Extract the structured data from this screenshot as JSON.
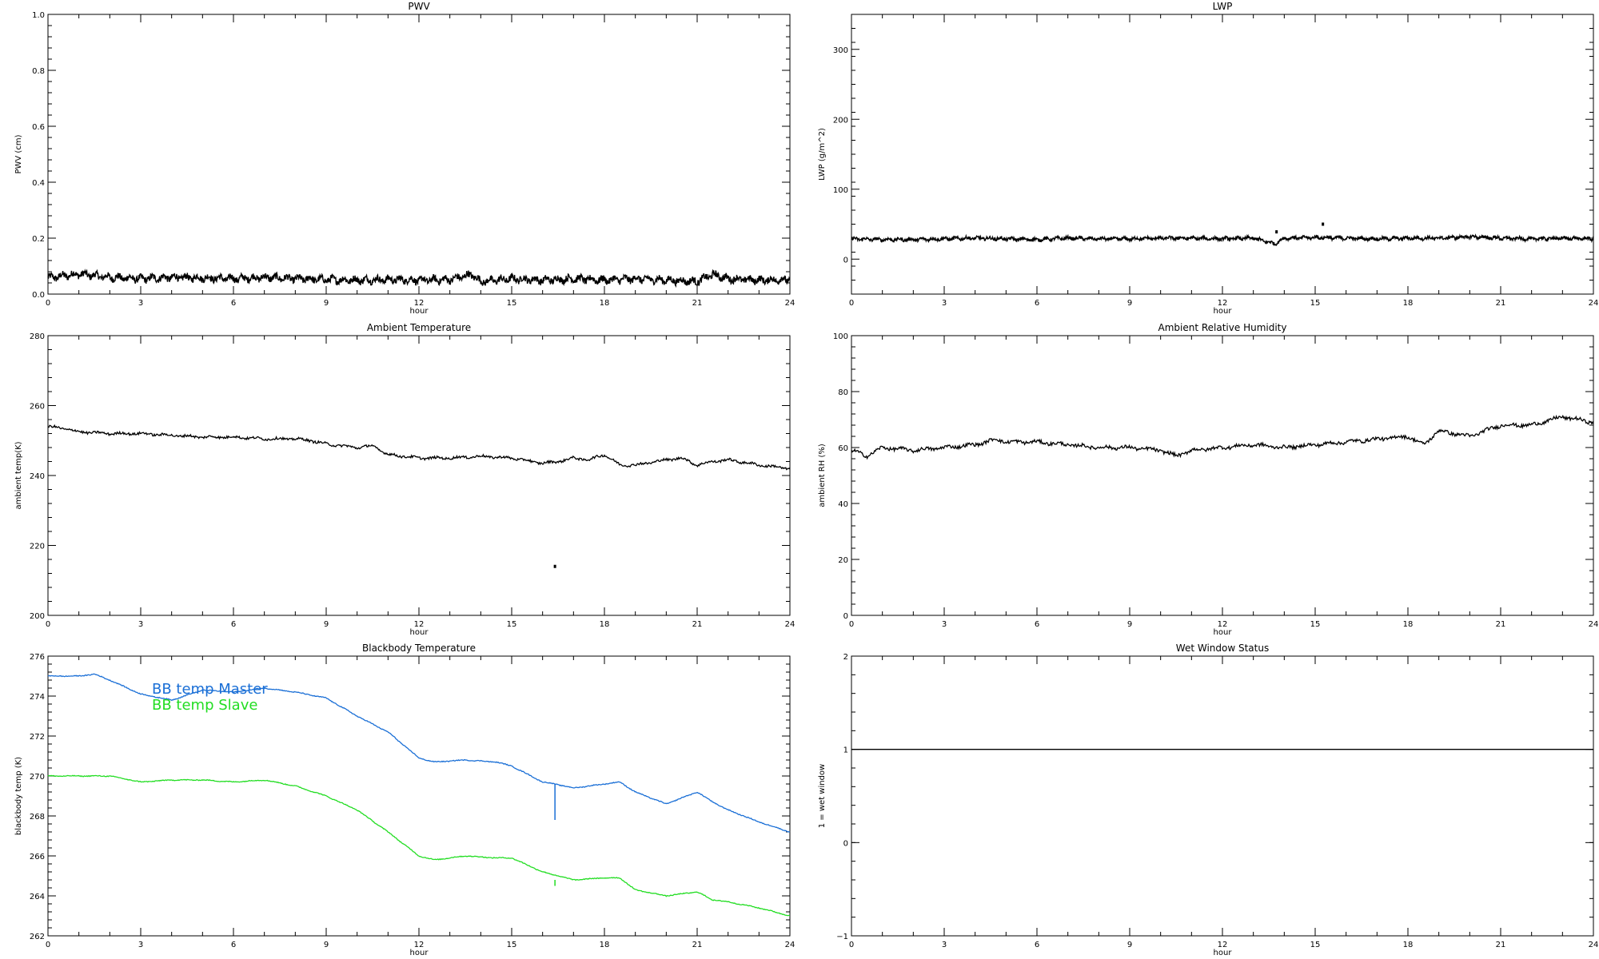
{
  "chart_data": [
    {
      "id": "pwv",
      "type": "line",
      "title": "PWV",
      "xlabel": "hour",
      "ylabel": "PWV (cm)",
      "xlim": [
        0,
        24
      ],
      "ylim": [
        0,
        1.0
      ],
      "xticks": [
        "0",
        "3",
        "6",
        "9",
        "12",
        "15",
        "18",
        "21",
        "24"
      ],
      "yticks": [
        "0.0",
        "0.2",
        "0.4",
        "0.6",
        "0.8",
        "1.0"
      ],
      "series": [
        {
          "color": "#000000",
          "style": "noisy",
          "noise": 0.012,
          "x": [
            0,
            1,
            2,
            3,
            4,
            5,
            6,
            7,
            8,
            9,
            10,
            11,
            12,
            13,
            13.7,
            14,
            15,
            16,
            17,
            18,
            19,
            20,
            21,
            21.5,
            22,
            23,
            24
          ],
          "y": [
            0.058,
            0.072,
            0.06,
            0.055,
            0.06,
            0.058,
            0.055,
            0.06,
            0.055,
            0.052,
            0.05,
            0.052,
            0.05,
            0.052,
            0.07,
            0.045,
            0.055,
            0.05,
            0.055,
            0.05,
            0.055,
            0.05,
            0.045,
            0.07,
            0.055,
            0.05,
            0.052
          ]
        }
      ]
    },
    {
      "id": "lwp",
      "type": "line",
      "title": "LWP",
      "xlabel": "hour",
      "ylabel": "LWP (g/m^2)",
      "xlim": [
        0,
        24
      ],
      "ylim": [
        -50,
        350
      ],
      "xticks": [
        "0",
        "3",
        "6",
        "9",
        "12",
        "15",
        "18",
        "21",
        "24"
      ],
      "yticks": [
        "0",
        "100",
        "200",
        "300"
      ],
      "series": [
        {
          "color": "#000000",
          "style": "noisy",
          "noise": 2.2,
          "x": [
            0,
            1,
            2,
            3,
            4,
            5,
            6,
            7,
            8,
            9,
            10,
            11,
            12,
            13,
            13.7,
            14,
            15,
            16,
            17,
            18,
            19,
            20,
            21,
            22,
            23,
            24
          ],
          "y": [
            29,
            28,
            28,
            29,
            30,
            29,
            28,
            30,
            29,
            29,
            30,
            30,
            29,
            30,
            22,
            30,
            31,
            30,
            29,
            30,
            30,
            32,
            30,
            29,
            30,
            29
          ]
        }
      ],
      "points": [
        {
          "x": 13.75,
          "y": 39
        },
        {
          "x": 15.25,
          "y": 50
        }
      ]
    },
    {
      "id": "ambient_temp",
      "type": "line",
      "title": "Ambient Temperature",
      "xlabel": "hour",
      "ylabel": "ambient temp(K)",
      "xlim": [
        0,
        24
      ],
      "ylim": [
        200,
        280
      ],
      "xticks": [
        "0",
        "3",
        "6",
        "9",
        "12",
        "15",
        "18",
        "21",
        "24"
      ],
      "yticks": [
        "200",
        "220",
        "240",
        "260",
        "280"
      ],
      "series": [
        {
          "color": "#000000",
          "style": "smooth",
          "noise": 0.35,
          "x": [
            0,
            0.5,
            1,
            2,
            3,
            4,
            5,
            6,
            7,
            8,
            8.5,
            9,
            10,
            10.5,
            11,
            12,
            13,
            14,
            15,
            16,
            16.5,
            17,
            17.5,
            18,
            18.5,
            19,
            20,
            20.5,
            21,
            21.5,
            22,
            23,
            24
          ],
          "y": [
            254,
            253.5,
            252.5,
            252,
            252,
            251.5,
            251,
            251,
            250.5,
            250.5,
            250,
            249,
            248,
            248.5,
            246,
            245,
            245,
            245.5,
            245,
            243.5,
            244,
            245,
            244.5,
            246,
            243,
            243,
            244.5,
            245,
            243,
            244,
            244.5,
            243,
            242
          ]
        }
      ],
      "points": [
        {
          "x": 16.4,
          "y": 214
        }
      ]
    },
    {
      "id": "ambient_rh",
      "type": "line",
      "title": "Ambient Relative Humidity",
      "xlabel": "hour",
      "ylabel": "ambient RH (%)",
      "xlim": [
        0,
        24
      ],
      "ylim": [
        0,
        100
      ],
      "xticks": [
        "0",
        "3",
        "6",
        "9",
        "12",
        "15",
        "18",
        "21",
        "24"
      ],
      "yticks": [
        "0",
        "20",
        "40",
        "60",
        "80",
        "100"
      ],
      "series": [
        {
          "color": "#000000",
          "style": "smooth",
          "noise": 0.6,
          "x": [
            0,
            0.5,
            1,
            2,
            3,
            4,
            4.7,
            5,
            6,
            7,
            8,
            9,
            10,
            10.5,
            11,
            12,
            13,
            14,
            15,
            16,
            17,
            18,
            18.5,
            19,
            20,
            21,
            22,
            23,
            24
          ],
          "y": [
            59,
            57,
            60,
            59,
            60,
            61,
            63,
            62,
            62,
            61,
            60,
            60,
            59,
            57,
            59,
            60,
            61,
            60,
            61,
            62,
            63,
            64,
            61,
            66,
            64,
            68,
            68,
            71,
            69
          ]
        }
      ]
    },
    {
      "id": "bb_temp",
      "type": "line",
      "title": "Blackbody Temperature",
      "xlabel": "hour",
      "ylabel": "blackbody temp (K)",
      "xlim": [
        0,
        24
      ],
      "ylim": [
        262,
        276
      ],
      "xticks": [
        "0",
        "3",
        "6",
        "9",
        "12",
        "15",
        "18",
        "21",
        "24"
      ],
      "yticks": [
        "262",
        "264",
        "266",
        "268",
        "270",
        "272",
        "274",
        "276"
      ],
      "legend": "top-left",
      "series": [
        {
          "name": "BB temp Master",
          "color": "#1a6fd6",
          "style": "smooth",
          "noise": 0.02,
          "x": [
            0,
            1,
            1.5,
            2,
            3,
            4,
            5,
            6,
            7,
            8,
            9,
            10,
            11,
            12,
            12.5,
            13.5,
            14.5,
            15,
            16,
            16.4,
            17,
            18,
            18.5,
            19,
            20,
            21,
            21.5,
            22,
            23,
            24
          ],
          "y": [
            275,
            275,
            275.1,
            274.8,
            274.1,
            273.8,
            274.3,
            274.2,
            274.4,
            274.2,
            273.9,
            273.0,
            272.2,
            270.9,
            270.7,
            270.8,
            270.7,
            270.5,
            269.7,
            269.6,
            269.4,
            269.6,
            269.7,
            269.2,
            268.6,
            269.2,
            268.7,
            268.3,
            267.7,
            267.2
          ]
        },
        {
          "name": "BB temp Slave",
          "color": "#22dd22",
          "style": "smooth",
          "noise": 0.02,
          "x": [
            0,
            1,
            2,
            3,
            4,
            5,
            6,
            7,
            8,
            9,
            10,
            11,
            12,
            12.5,
            13.5,
            14.5,
            15,
            16,
            17,
            18,
            18.5,
            19,
            20,
            21,
            21.5,
            22,
            23,
            24
          ],
          "y": [
            270,
            270,
            270,
            269.7,
            269.8,
            269.8,
            269.7,
            269.8,
            269.5,
            269.0,
            268.3,
            267.2,
            266.0,
            265.8,
            266.0,
            265.9,
            265.9,
            265.2,
            264.8,
            264.9,
            264.9,
            264.3,
            264.0,
            264.2,
            263.8,
            263.7,
            263.4,
            263.0
          ]
        }
      ],
      "spikes": [
        {
          "series": 0,
          "x": 16.4,
          "y1": 269.6,
          "y2": 267.8
        },
        {
          "series": 1,
          "x": 16.4,
          "y1": 264.8,
          "y2": 264.5
        }
      ]
    },
    {
      "id": "wet_window",
      "type": "line",
      "title": "Wet Window Status",
      "xlabel": "hour",
      "ylabel": "1 = wet window",
      "xlim": [
        0,
        24
      ],
      "ylim": [
        -1,
        2
      ],
      "xticks": [
        "0",
        "3",
        "6",
        "9",
        "12",
        "15",
        "18",
        "21",
        "24"
      ],
      "yticks": [
        "−1",
        "0",
        "1",
        "2"
      ],
      "series": [
        {
          "color": "#000000",
          "style": "flat",
          "x": [
            0,
            24
          ],
          "y": [
            1,
            1
          ]
        }
      ]
    }
  ]
}
